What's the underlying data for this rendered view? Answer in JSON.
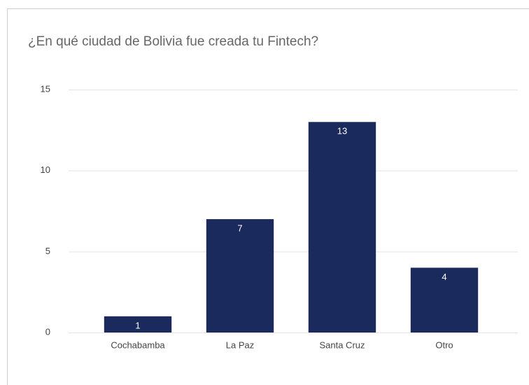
{
  "chart_data": {
    "type": "bar",
    "title": "¿En qué ciudad de Bolivia fue creada tu Fintech?",
    "categories": [
      "Cochabamba",
      "La Paz",
      "Santa Cruz",
      "Otro"
    ],
    "values": [
      1,
      7,
      13,
      4
    ],
    "color": "#1b2a5c",
    "ylim": [
      0,
      15
    ],
    "yticks": [
      0,
      5,
      10,
      15
    ],
    "grid": true
  }
}
